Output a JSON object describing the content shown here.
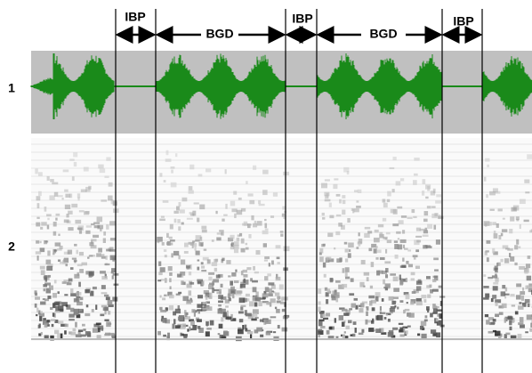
{
  "segments": [
    "IBP",
    "BGD",
    "IBP",
    "BGD",
    "IBP"
  ],
  "row_labels": [
    "1",
    "2"
  ]
}
